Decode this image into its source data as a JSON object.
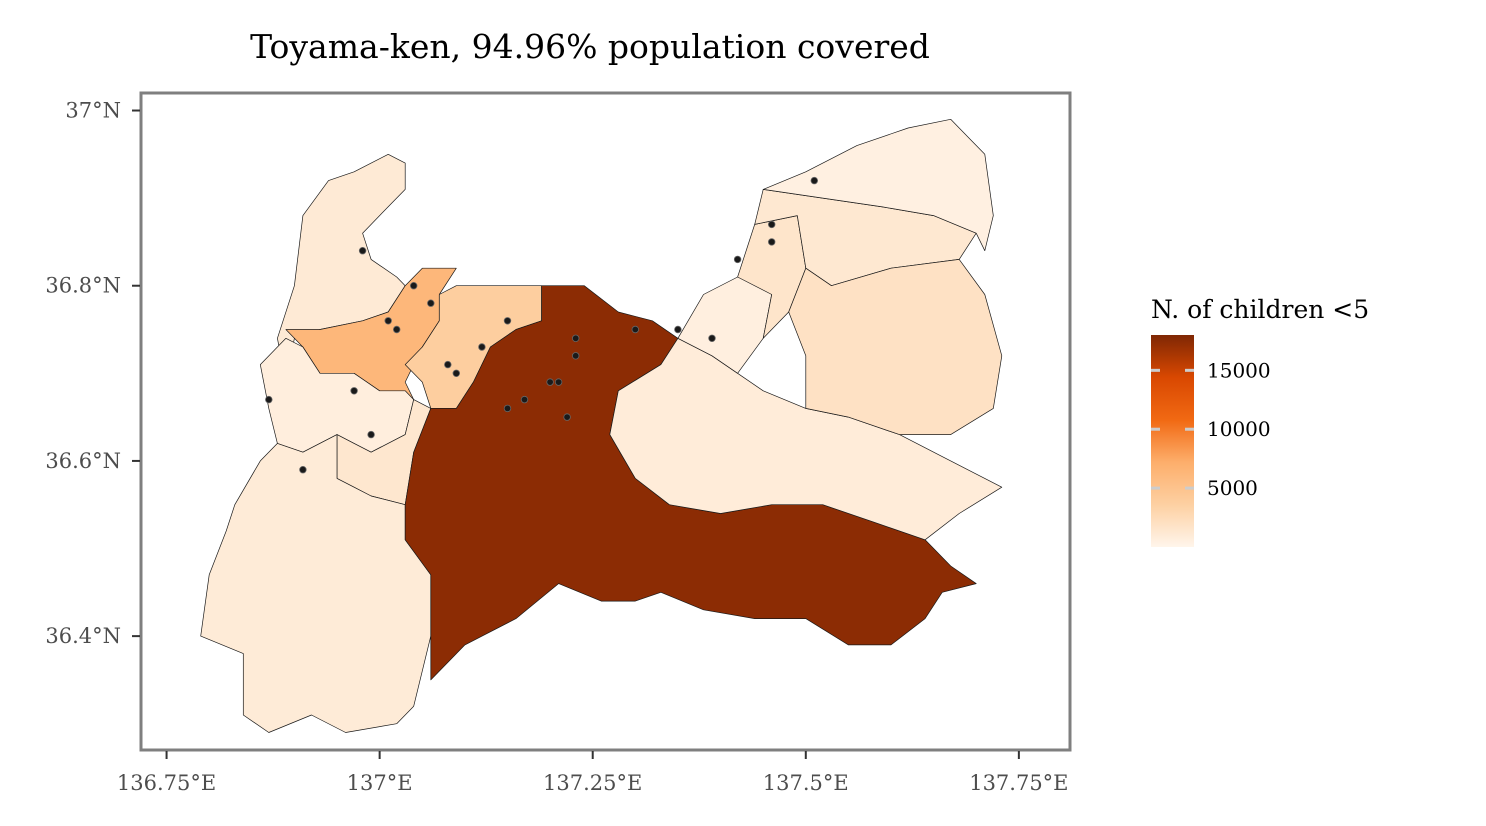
{
  "chart_data": {
    "type": "choropleth-map",
    "title": "Toyama-ken, 94.96% population covered",
    "xlim": [
      136.72,
      137.81
    ],
    "ylim": [
      36.27,
      37.02
    ],
    "x_ticks": [
      {
        "value": 136.75,
        "label": "136.75°E"
      },
      {
        "value": 137.0,
        "label": "137°E"
      },
      {
        "value": 137.25,
        "label": "137.25°E"
      },
      {
        "value": 137.5,
        "label": "137.5°E"
      },
      {
        "value": 137.75,
        "label": "137.75°E"
      }
    ],
    "y_ticks": [
      {
        "value": 36.4,
        "label": "36.4°N"
      },
      {
        "value": 36.6,
        "label": "36.6°N"
      },
      {
        "value": 36.8,
        "label": "36.8°N"
      },
      {
        "value": 37.0,
        "label": "37°N"
      }
    ],
    "legend": {
      "title": "N. of children <5",
      "min": 0,
      "max": 18000,
      "breaks": [
        {
          "value": 5000,
          "label": "5000"
        },
        {
          "value": 10000,
          "label": "10000"
        },
        {
          "value": 15000,
          "label": "15000"
        }
      ],
      "placement": "right",
      "colors": [
        "#fff5eb",
        "#fdd0a2",
        "#fdae6b",
        "#f16913",
        "#d94801",
        "#7f2704"
      ]
    },
    "regions": [
      {
        "id": "Himi",
        "value": 1100,
        "boundary": [
          [
            136.89,
            36.69
          ],
          [
            136.88,
            36.74
          ],
          [
            136.9,
            36.8
          ],
          [
            136.91,
            36.88
          ],
          [
            136.94,
            36.92
          ],
          [
            136.97,
            36.93
          ],
          [
            137.01,
            36.95
          ],
          [
            137.03,
            36.94
          ],
          [
            137.03,
            36.91
          ],
          [
            137.0,
            36.88
          ],
          [
            136.98,
            36.86
          ],
          [
            136.99,
            36.83
          ],
          [
            137.02,
            36.81
          ],
          [
            137.03,
            36.8
          ],
          [
            137.01,
            36.77
          ],
          [
            136.98,
            36.76
          ],
          [
            136.93,
            36.75
          ],
          [
            136.9,
            36.74
          ],
          [
            136.89,
            36.69
          ]
        ]
      },
      {
        "id": "Takaoka",
        "value": 6200,
        "boundary": [
          [
            136.89,
            36.75
          ],
          [
            136.93,
            36.75
          ],
          [
            136.98,
            36.76
          ],
          [
            137.01,
            36.77
          ],
          [
            137.03,
            36.8
          ],
          [
            137.05,
            36.82
          ],
          [
            137.09,
            36.82
          ],
          [
            137.07,
            36.79
          ],
          [
            137.07,
            36.76
          ],
          [
            137.05,
            36.73
          ],
          [
            137.04,
            36.71
          ],
          [
            137.03,
            36.69
          ],
          [
            137.04,
            36.67
          ],
          [
            137.0,
            36.68
          ],
          [
            136.97,
            36.7
          ],
          [
            136.93,
            36.7
          ],
          [
            136.91,
            36.73
          ],
          [
            136.89,
            36.75
          ]
        ]
      },
      {
        "id": "Imizu",
        "value": 3800,
        "boundary": [
          [
            137.07,
            36.79
          ],
          [
            137.09,
            36.8
          ],
          [
            137.12,
            36.8
          ],
          [
            137.19,
            36.8
          ],
          [
            137.19,
            36.76
          ],
          [
            137.16,
            36.75
          ],
          [
            137.13,
            36.73
          ],
          [
            137.11,
            36.69
          ],
          [
            137.09,
            36.66
          ],
          [
            137.06,
            36.66
          ],
          [
            137.05,
            36.69
          ],
          [
            137.03,
            36.71
          ],
          [
            137.05,
            36.73
          ],
          [
            137.07,
            36.76
          ],
          [
            137.07,
            36.79
          ]
        ]
      },
      {
        "id": "Oyabe",
        "value": 700,
        "boundary": [
          [
            136.89,
            36.74
          ],
          [
            136.91,
            36.73
          ],
          [
            136.93,
            36.7
          ],
          [
            136.97,
            36.7
          ],
          [
            137.0,
            36.68
          ],
          [
            137.03,
            36.68
          ],
          [
            137.04,
            36.67
          ],
          [
            137.03,
            36.63
          ],
          [
            136.99,
            36.61
          ],
          [
            136.97,
            36.62
          ],
          [
            136.95,
            36.63
          ],
          [
            136.91,
            36.61
          ],
          [
            136.88,
            36.62
          ],
          [
            136.87,
            36.66
          ],
          [
            136.86,
            36.71
          ],
          [
            136.89,
            36.74
          ]
        ]
      },
      {
        "id": "Tonami",
        "value": 1400,
        "boundary": [
          [
            136.95,
            36.63
          ],
          [
            136.97,
            36.62
          ],
          [
            136.99,
            36.61
          ],
          [
            137.03,
            36.63
          ],
          [
            137.04,
            36.67
          ],
          [
            137.06,
            36.66
          ],
          [
            137.04,
            36.61
          ],
          [
            137.03,
            36.55
          ],
          [
            136.99,
            36.56
          ],
          [
            136.97,
            36.57
          ],
          [
            136.95,
            36.58
          ],
          [
            136.95,
            36.63
          ]
        ]
      },
      {
        "id": "Nanto",
        "value": 1000,
        "boundary": [
          [
            136.88,
            36.62
          ],
          [
            136.91,
            36.61
          ],
          [
            136.95,
            36.63
          ],
          [
            136.95,
            36.58
          ],
          [
            136.99,
            36.56
          ],
          [
            137.03,
            36.55
          ],
          [
            137.03,
            36.51
          ],
          [
            137.06,
            36.47
          ],
          [
            137.06,
            36.4
          ],
          [
            137.04,
            36.32
          ],
          [
            137.02,
            36.3
          ],
          [
            136.96,
            36.29
          ],
          [
            136.92,
            36.31
          ],
          [
            136.87,
            36.29
          ],
          [
            136.84,
            36.31
          ],
          [
            136.84,
            36.38
          ],
          [
            136.79,
            36.4
          ],
          [
            136.8,
            36.47
          ],
          [
            136.82,
            36.52
          ],
          [
            136.83,
            36.55
          ],
          [
            136.86,
            36.6
          ],
          [
            136.88,
            36.62
          ]
        ]
      },
      {
        "id": "Toyama",
        "value": 17500,
        "boundary": [
          [
            137.06,
            36.66
          ],
          [
            137.09,
            36.66
          ],
          [
            137.11,
            36.69
          ],
          [
            137.13,
            36.73
          ],
          [
            137.16,
            36.75
          ],
          [
            137.19,
            36.76
          ],
          [
            137.19,
            36.8
          ],
          [
            137.24,
            36.8
          ],
          [
            137.28,
            36.77
          ],
          [
            137.32,
            36.76
          ],
          [
            137.35,
            36.74
          ],
          [
            137.33,
            36.71
          ],
          [
            137.28,
            36.68
          ],
          [
            137.27,
            36.63
          ],
          [
            137.3,
            36.58
          ],
          [
            137.34,
            36.55
          ],
          [
            137.4,
            36.54
          ],
          [
            137.46,
            36.55
          ],
          [
            137.52,
            36.55
          ],
          [
            137.58,
            36.53
          ],
          [
            137.64,
            36.51
          ],
          [
            137.67,
            36.48
          ],
          [
            137.7,
            36.46
          ],
          [
            137.66,
            36.45
          ],
          [
            137.64,
            36.42
          ],
          [
            137.6,
            36.39
          ],
          [
            137.55,
            36.39
          ],
          [
            137.5,
            36.42
          ],
          [
            137.44,
            36.42
          ],
          [
            137.38,
            36.43
          ],
          [
            137.33,
            36.45
          ],
          [
            137.3,
            36.44
          ],
          [
            137.26,
            36.44
          ],
          [
            137.21,
            36.46
          ],
          [
            137.16,
            36.42
          ],
          [
            137.1,
            36.39
          ],
          [
            137.06,
            36.35
          ],
          [
            137.06,
            36.4
          ],
          [
            137.06,
            36.47
          ],
          [
            137.03,
            36.51
          ],
          [
            137.03,
            36.55
          ],
          [
            137.04,
            36.61
          ],
          [
            137.06,
            36.66
          ]
        ]
      },
      {
        "id": "Kamiichi",
        "value": 900,
        "boundary": [
          [
            137.28,
            36.68
          ],
          [
            137.33,
            36.71
          ],
          [
            137.35,
            36.74
          ],
          [
            137.39,
            36.72
          ],
          [
            137.42,
            36.7
          ],
          [
            137.45,
            36.68
          ],
          [
            137.5,
            36.66
          ],
          [
            137.55,
            36.65
          ],
          [
            137.61,
            36.63
          ],
          [
            137.67,
            36.6
          ],
          [
            137.73,
            36.57
          ],
          [
            137.68,
            36.54
          ],
          [
            137.64,
            36.51
          ],
          [
            137.58,
            36.53
          ],
          [
            137.52,
            36.55
          ],
          [
            137.46,
            36.55
          ],
          [
            137.4,
            36.54
          ],
          [
            137.34,
            36.55
          ],
          [
            137.3,
            36.58
          ],
          [
            137.27,
            36.63
          ],
          [
            137.28,
            36.68
          ]
        ]
      },
      {
        "id": "Tateyama",
        "value": 600,
        "boundary": [
          [
            137.35,
            36.74
          ],
          [
            137.38,
            36.79
          ],
          [
            137.42,
            36.81
          ],
          [
            137.45,
            36.83
          ],
          [
            137.46,
            36.79
          ],
          [
            137.45,
            36.74
          ],
          [
            137.42,
            36.7
          ],
          [
            137.39,
            36.72
          ],
          [
            137.35,
            36.74
          ]
        ]
      },
      {
        "id": "Namerikawa",
        "value": 1600,
        "boundary": [
          [
            137.42,
            36.81
          ],
          [
            137.44,
            36.87
          ],
          [
            137.49,
            36.88
          ],
          [
            137.5,
            36.82
          ],
          [
            137.48,
            36.77
          ],
          [
            137.45,
            36.74
          ],
          [
            137.46,
            36.79
          ],
          [
            137.42,
            36.81
          ]
        ]
      },
      {
        "id": "Uozu",
        "value": 1300,
        "boundary": [
          [
            137.44,
            36.87
          ],
          [
            137.45,
            36.91
          ],
          [
            137.52,
            36.9
          ],
          [
            137.59,
            36.89
          ],
          [
            137.65,
            36.88
          ],
          [
            137.7,
            36.86
          ],
          [
            137.68,
            36.83
          ],
          [
            137.6,
            36.82
          ],
          [
            137.53,
            36.8
          ],
          [
            137.5,
            36.82
          ],
          [
            137.49,
            36.88
          ],
          [
            137.44,
            36.87
          ]
        ]
      },
      {
        "id": "Kurobe",
        "value": 1900,
        "boundary": [
          [
            137.5,
            36.82
          ],
          [
            137.53,
            36.8
          ],
          [
            137.6,
            36.82
          ],
          [
            137.68,
            36.83
          ],
          [
            137.71,
            36.79
          ],
          [
            137.73,
            36.72
          ],
          [
            137.72,
            36.66
          ],
          [
            137.67,
            36.63
          ],
          [
            137.61,
            36.63
          ],
          [
            137.55,
            36.65
          ],
          [
            137.5,
            36.66
          ],
          [
            137.5,
            36.72
          ],
          [
            137.48,
            36.77
          ],
          [
            137.5,
            36.82
          ]
        ]
      },
      {
        "id": "Asahi",
        "value": 500,
        "boundary": [
          [
            137.45,
            36.91
          ],
          [
            137.5,
            36.93
          ],
          [
            137.56,
            36.96
          ],
          [
            137.62,
            36.98
          ],
          [
            137.67,
            36.99
          ],
          [
            137.71,
            36.95
          ],
          [
            137.72,
            36.88
          ],
          [
            137.71,
            36.84
          ],
          [
            137.7,
            36.86
          ],
          [
            137.65,
            36.88
          ],
          [
            137.59,
            36.89
          ],
          [
            137.52,
            36.9
          ],
          [
            137.45,
            36.91
          ]
        ]
      }
    ],
    "points": [
      {
        "lon": 137.51,
        "lat": 36.92
      },
      {
        "lon": 137.46,
        "lat": 36.87
      },
      {
        "lon": 137.46,
        "lat": 36.85
      },
      {
        "lon": 137.42,
        "lat": 36.83
      },
      {
        "lon": 136.98,
        "lat": 36.84
      },
      {
        "lon": 137.04,
        "lat": 36.8
      },
      {
        "lon": 137.06,
        "lat": 36.78
      },
      {
        "lon": 137.01,
        "lat": 36.76
      },
      {
        "lon": 137.02,
        "lat": 36.75
      },
      {
        "lon": 137.15,
        "lat": 36.76
      },
      {
        "lon": 137.3,
        "lat": 36.75
      },
      {
        "lon": 137.35,
        "lat": 36.75
      },
      {
        "lon": 137.39,
        "lat": 36.74
      },
      {
        "lon": 137.23,
        "lat": 36.74
      },
      {
        "lon": 137.23,
        "lat": 36.72
      },
      {
        "lon": 137.12,
        "lat": 36.73
      },
      {
        "lon": 137.08,
        "lat": 36.71
      },
      {
        "lon": 137.09,
        "lat": 36.7
      },
      {
        "lon": 137.2,
        "lat": 36.69
      },
      {
        "lon": 137.21,
        "lat": 36.69
      },
      {
        "lon": 137.17,
        "lat": 36.67
      },
      {
        "lon": 137.15,
        "lat": 36.66
      },
      {
        "lon": 137.22,
        "lat": 36.65
      },
      {
        "lon": 136.97,
        "lat": 36.68
      },
      {
        "lon": 136.87,
        "lat": 36.67
      },
      {
        "lon": 136.99,
        "lat": 36.63
      },
      {
        "lon": 136.91,
        "lat": 36.59
      }
    ]
  }
}
